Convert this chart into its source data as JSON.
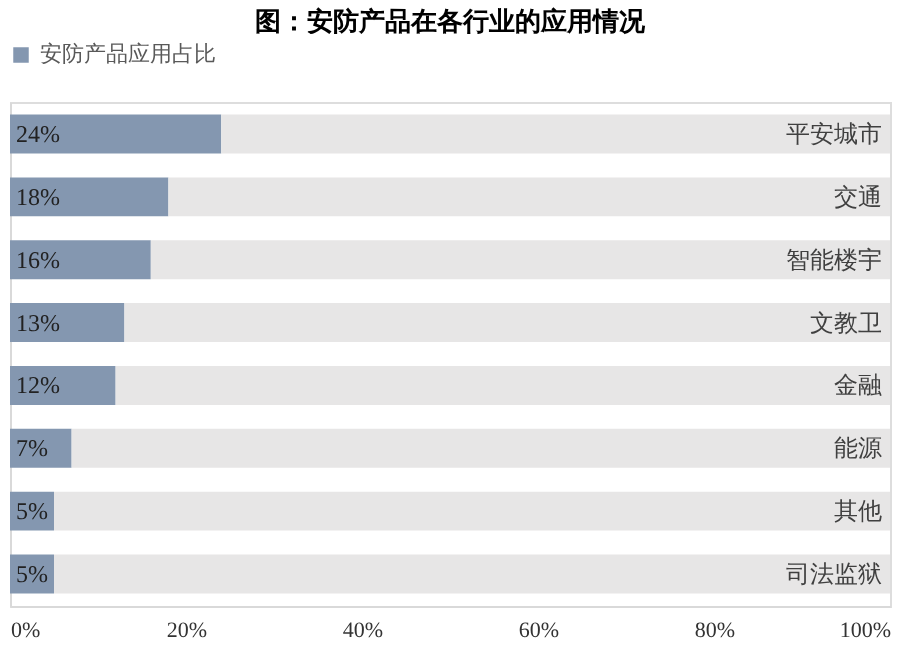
{
  "chart_data": {
    "type": "bar",
    "orientation": "horizontal",
    "stacked": true,
    "title": "图：安防产品在各行业的应用情况",
    "categories": [
      "平安城市",
      "交通",
      "智能楼宇",
      "文教卫",
      "金融",
      "能源",
      "其他",
      "司法监狱"
    ],
    "series": [
      {
        "name": "安防产品应用占比",
        "color": "#8497b0",
        "values": [
          24,
          18,
          16,
          13,
          12,
          7,
          5,
          5
        ],
        "value_labels": [
          "24%",
          "18%",
          "16%",
          "13%",
          "12%",
          "7%",
          "5%",
          "5%"
        ]
      },
      {
        "color": "#e7e6e6",
        "values": [
          76,
          82,
          84,
          87,
          88,
          93,
          95,
          95
        ]
      }
    ],
    "xlim": [
      0,
      100
    ],
    "xticks": [
      {
        "value": 0,
        "label": "0%"
      },
      {
        "value": 20,
        "label": "20%"
      },
      {
        "value": 40,
        "label": "40%"
      },
      {
        "value": 60,
        "label": "60%"
      },
      {
        "value": 80,
        "label": "80%"
      },
      {
        "value": 100,
        "label": "100%"
      }
    ],
    "grid": false,
    "legend": "top"
  }
}
